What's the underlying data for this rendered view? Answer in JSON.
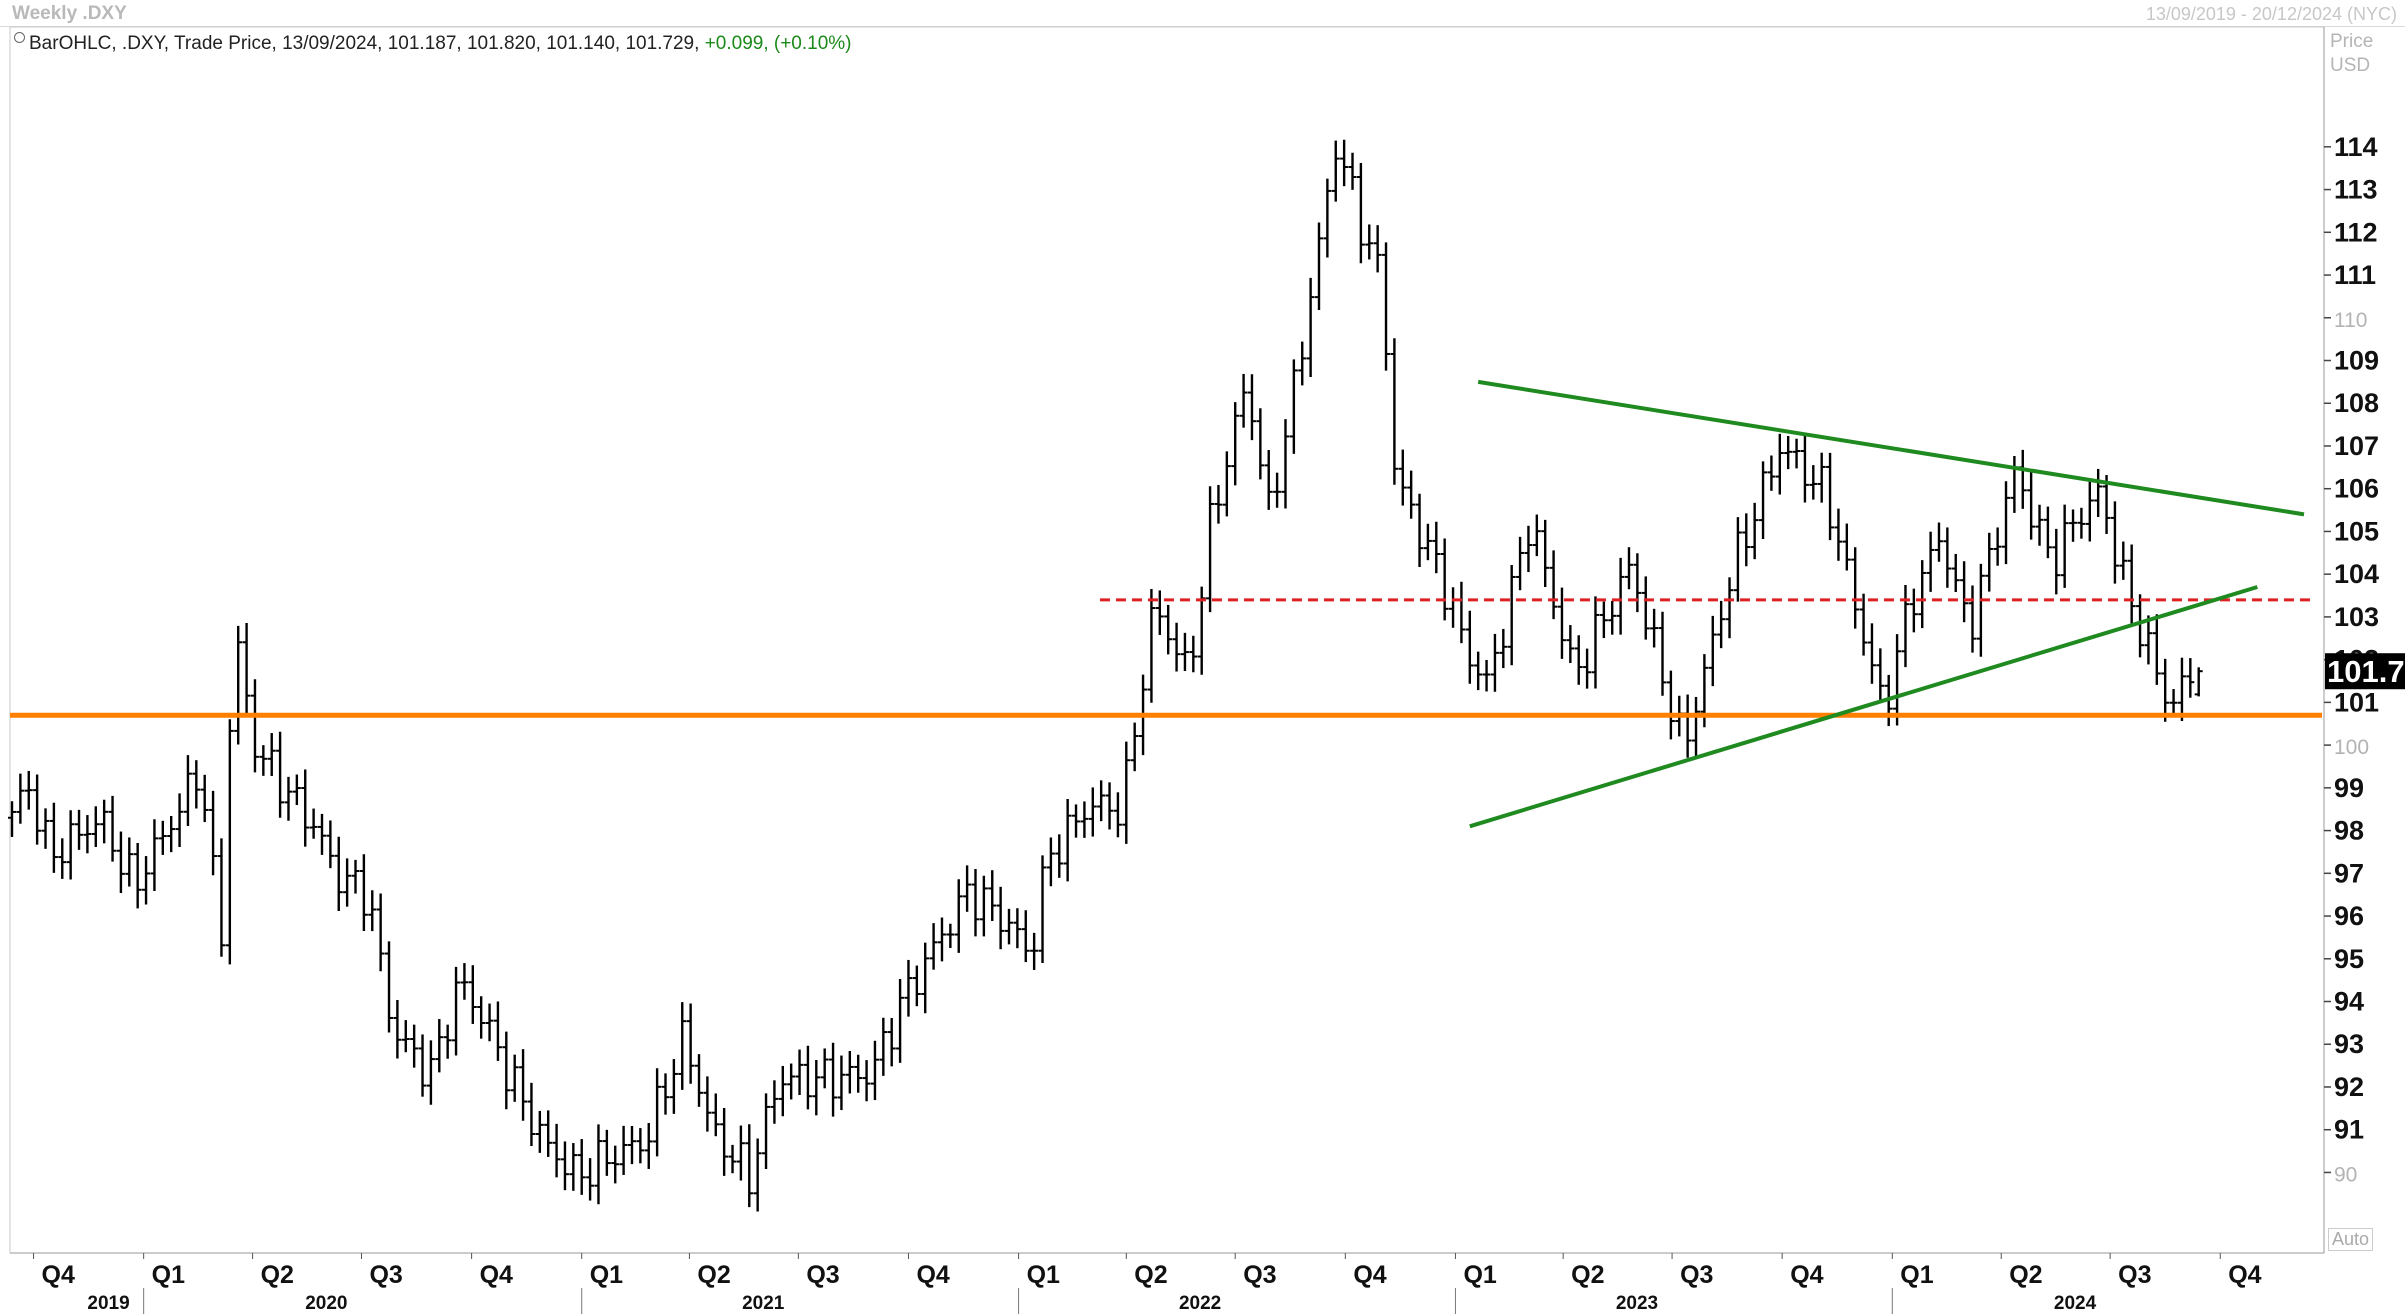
{
  "window": {
    "title": "Weekly .DXY",
    "date_range": "13/09/2019 - 20/12/2024 (NYC)"
  },
  "legend": {
    "text": "BarOHLC, .DXY, Trade Price, 13/09/2024, 101.187, 101.820, 101.140, 101.729,",
    "change": "+0.099, (+0.10%)"
  },
  "y_axis": {
    "header_line1": "Price",
    "header_line2": "USD",
    "auto_label": "Auto",
    "last_price_label": "101.7",
    "last_price_color": "#000000"
  },
  "chart_data": {
    "type": "bar",
    "subtype": "ohlc",
    "instrument": ".DXY",
    "frequency": "Weekly",
    "ylim": [
      88.7,
      116.5
    ],
    "y_ticks": [
      90,
      91,
      92,
      93,
      94,
      95,
      96,
      97,
      98,
      99,
      100,
      101,
      102,
      103,
      104,
      105,
      106,
      107,
      108,
      109,
      110,
      111,
      112,
      113,
      114
    ],
    "y_ticks_bold": [
      91,
      92,
      93,
      94,
      95,
      96,
      97,
      98,
      99,
      101,
      102,
      103,
      104,
      105,
      106,
      107,
      108,
      109,
      111,
      112,
      113,
      114
    ],
    "x_range": [
      "2019-09-13",
      "2024-12-20"
    ],
    "quarter_labels": [
      {
        "label": "Q4",
        "date": "2019-10-01"
      },
      {
        "label": "Q1",
        "date": "2020-01-01"
      },
      {
        "label": "Q2",
        "date": "2020-04-01"
      },
      {
        "label": "Q3",
        "date": "2020-07-01"
      },
      {
        "label": "Q4",
        "date": "2020-10-01"
      },
      {
        "label": "Q1",
        "date": "2021-01-01"
      },
      {
        "label": "Q2",
        "date": "2021-04-01"
      },
      {
        "label": "Q3",
        "date": "2021-07-01"
      },
      {
        "label": "Q4",
        "date": "2021-10-01"
      },
      {
        "label": "Q1",
        "date": "2022-01-01"
      },
      {
        "label": "Q2",
        "date": "2022-04-01"
      },
      {
        "label": "Q3",
        "date": "2022-07-01"
      },
      {
        "label": "Q4",
        "date": "2022-10-01"
      },
      {
        "label": "Q1",
        "date": "2023-01-01"
      },
      {
        "label": "Q2",
        "date": "2023-04-01"
      },
      {
        "label": "Q3",
        "date": "2023-07-01"
      },
      {
        "label": "Q4",
        "date": "2023-10-01"
      },
      {
        "label": "Q1",
        "date": "2024-01-01"
      },
      {
        "label": "Q2",
        "date": "2024-04-01"
      },
      {
        "label": "Q3",
        "date": "2024-07-01"
      },
      {
        "label": "Q4",
        "date": "2024-10-01"
      }
    ],
    "year_labels": [
      {
        "label": "2019",
        "date": "2019-11-15"
      },
      {
        "label": "2020",
        "date": "2020-05-15"
      },
      {
        "label": "2021",
        "date": "2021-05-15"
      },
      {
        "label": "2022",
        "date": "2022-05-15"
      },
      {
        "label": "2023",
        "date": "2023-05-15"
      },
      {
        "label": "2024",
        "date": "2024-05-15"
      }
    ],
    "year_dividers": [
      "2020-01-01",
      "2021-01-01",
      "2022-01-01",
      "2023-01-01",
      "2024-01-01"
    ],
    "bar_color": "#000000",
    "price_anchors": [
      [
        "2019-09-13",
        98.3
      ],
      [
        "2019-10-01",
        99.0
      ],
      [
        "2019-10-18",
        97.4
      ],
      [
        "2019-11-29",
        98.3
      ],
      [
        "2019-12-27",
        96.7
      ],
      [
        "2020-02-07",
        98.7
      ],
      [
        "2020-02-21",
        99.5
      ],
      [
        "2020-03-09",
        95.3
      ],
      [
        "2020-03-20",
        102.8
      ],
      [
        "2020-04-06",
        100.0
      ],
      [
        "2020-05-01",
        99.0
      ],
      [
        "2020-05-29",
        98.0
      ],
      [
        "2020-06-12",
        97.0
      ],
      [
        "2020-07-10",
        96.5
      ],
      [
        "2020-07-31",
        93.3
      ],
      [
        "2020-08-31",
        92.3
      ],
      [
        "2020-09-25",
        94.5
      ],
      [
        "2020-10-16",
        93.5
      ],
      [
        "2020-11-06",
        92.2
      ],
      [
        "2020-12-04",
        90.7
      ],
      [
        "2021-01-01",
        89.9
      ],
      [
        "2021-01-22",
        90.3
      ],
      [
        "2021-02-26",
        90.7
      ],
      [
        "2021-03-31",
        93.2
      ],
      [
        "2021-04-23",
        91.0
      ],
      [
        "2021-05-25",
        89.9
      ],
      [
        "2021-06-18",
        92.2
      ],
      [
        "2021-07-30",
        92.2
      ],
      [
        "2021-09-03",
        92.3
      ],
      [
        "2021-10-01",
        94.1
      ],
      [
        "2021-11-24",
        96.6
      ],
      [
        "2021-12-31",
        95.7
      ],
      [
        "2022-01-14",
        95.0
      ],
      [
        "2022-01-28",
        97.3
      ],
      [
        "2022-03-04",
        98.6
      ],
      [
        "2022-04-01",
        98.5
      ],
      [
        "2022-04-28",
        103.3
      ],
      [
        "2022-05-27",
        101.6
      ],
      [
        "2022-06-14",
        105.2
      ],
      [
        "2022-07-14",
        108.5
      ],
      [
        "2022-08-02",
        105.4
      ],
      [
        "2022-08-26",
        108.8
      ],
      [
        "2022-09-27",
        114.1
      ],
      [
        "2022-10-21",
        111.9
      ],
      [
        "2022-11-04",
        110.9
      ],
      [
        "2022-11-15",
        106.3
      ],
      [
        "2022-12-30",
        103.5
      ],
      [
        "2023-01-13",
        102.2
      ],
      [
        "2023-02-01",
        101.4
      ],
      [
        "2023-03-08",
        105.3
      ],
      [
        "2023-04-14",
        101.6
      ],
      [
        "2023-05-31",
        104.2
      ],
      [
        "2023-07-14",
        99.9
      ],
      [
        "2023-08-25",
        104.2
      ],
      [
        "2023-10-03",
        107.0
      ],
      [
        "2023-11-10",
        105.9
      ],
      [
        "2023-12-28",
        100.8
      ],
      [
        "2024-01-19",
        103.3
      ],
      [
        "2024-02-14",
        104.9
      ],
      [
        "2024-03-08",
        102.7
      ],
      [
        "2024-04-16",
        106.4
      ],
      [
        "2024-05-16",
        104.3
      ],
      [
        "2024-06-14",
        105.6
      ],
      [
        "2024-06-26",
        105.9
      ],
      [
        "2024-07-17",
        103.7
      ],
      [
        "2024-08-23",
        100.9
      ],
      [
        "2024-09-13",
        101.73
      ]
    ],
    "last_bar": {
      "date": "13/09/2024",
      "open": 101.187,
      "high": 101.82,
      "low": 101.14,
      "close": 101.729
    },
    "annotations": [
      {
        "type": "hline",
        "name": "support",
        "y": 100.7,
        "color": "#ff7f00",
        "style": "solid"
      },
      {
        "type": "segment",
        "name": "resistance",
        "x1": "2022-03-10",
        "y1": 103.4,
        "x2": "2024-12-20",
        "y2": 103.4,
        "color": "#e02020",
        "style": "dashed"
      },
      {
        "type": "segment",
        "name": "upper-trendline",
        "x1": "2023-01-20",
        "y1": 108.5,
        "x2": "2024-12-10",
        "y2": 105.4,
        "color": "#1f8a1f",
        "style": "solid"
      },
      {
        "type": "segment",
        "name": "lower-trendline",
        "x1": "2023-01-13",
        "y1": 98.1,
        "x2": "2024-11-01",
        "y2": 103.7,
        "color": "#1f8a1f",
        "style": "solid"
      }
    ]
  }
}
